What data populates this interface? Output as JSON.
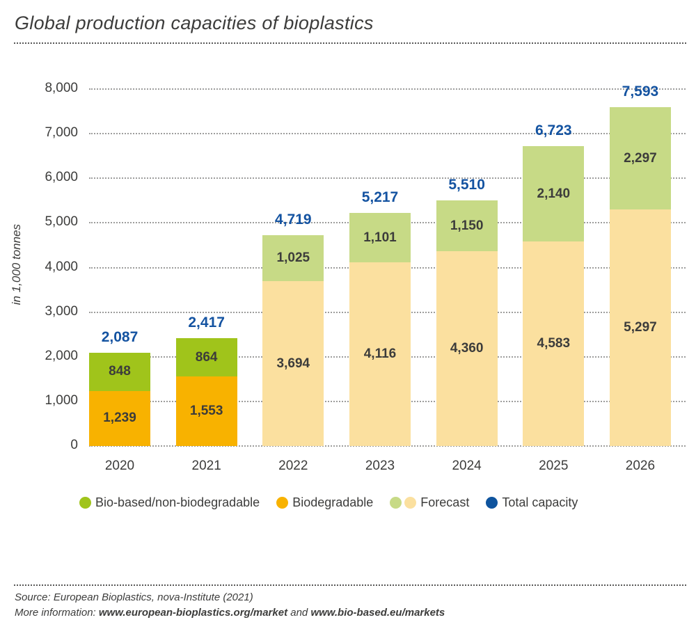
{
  "header": {
    "title": "Global production capacities of bioplastics"
  },
  "chart_data": {
    "type": "bar",
    "stacked": true,
    "title": "Global production capacities of bioplastics",
    "xlabel": "",
    "ylabel": "in 1,000 tonnes",
    "ylim": [
      0,
      8000
    ],
    "ytick_step": 1000,
    "grid": true,
    "legend_position": "bottom",
    "categories": [
      "2020",
      "2021",
      "2022",
      "2023",
      "2024",
      "2025",
      "2026"
    ],
    "series": [
      {
        "name": "Biodegradable",
        "stack_position": "bottom",
        "values": [
          1239,
          1553,
          3694,
          4116,
          4360,
          4583,
          5297
        ]
      },
      {
        "name": "Bio-based/non-biodegradable",
        "stack_position": "top",
        "values": [
          848,
          864,
          1025,
          1101,
          1150,
          2140,
          2297
        ]
      }
    ],
    "totals": [
      2087,
      2417,
      4719,
      5217,
      5510,
      6723,
      7593
    ],
    "totals_series_name": "Total capacity",
    "forecast_categories": [
      "2022",
      "2023",
      "2024",
      "2025",
      "2026"
    ],
    "colors": {
      "bio_based": "#a0c41b",
      "biodegradable": "#f8b200",
      "forecast_bio_based": "#c7da86",
      "forecast_biodegradable": "#fbe09f",
      "total": "#1453a1",
      "grid": "#9d9d9c",
      "text": "#3c3c3b"
    },
    "legend": [
      {
        "label": "Bio-based/non-biodegradable",
        "swatches": [
          "#a0c41b"
        ]
      },
      {
        "label": "Biodegradable",
        "swatches": [
          "#f8b200"
        ]
      },
      {
        "label": "Forecast",
        "swatches": [
          "#c7da86",
          "#fbe09f"
        ]
      },
      {
        "label": "Total capacity",
        "swatches": [
          "#0f549e"
        ]
      }
    ]
  },
  "footer": {
    "source": "Source: European Bioplastics, nova-Institute (2021)",
    "more_prefix": "More information: ",
    "link1": "www.european-bioplastics.org/market",
    "mid": " and ",
    "link2": "www.bio-based.eu/markets"
  }
}
